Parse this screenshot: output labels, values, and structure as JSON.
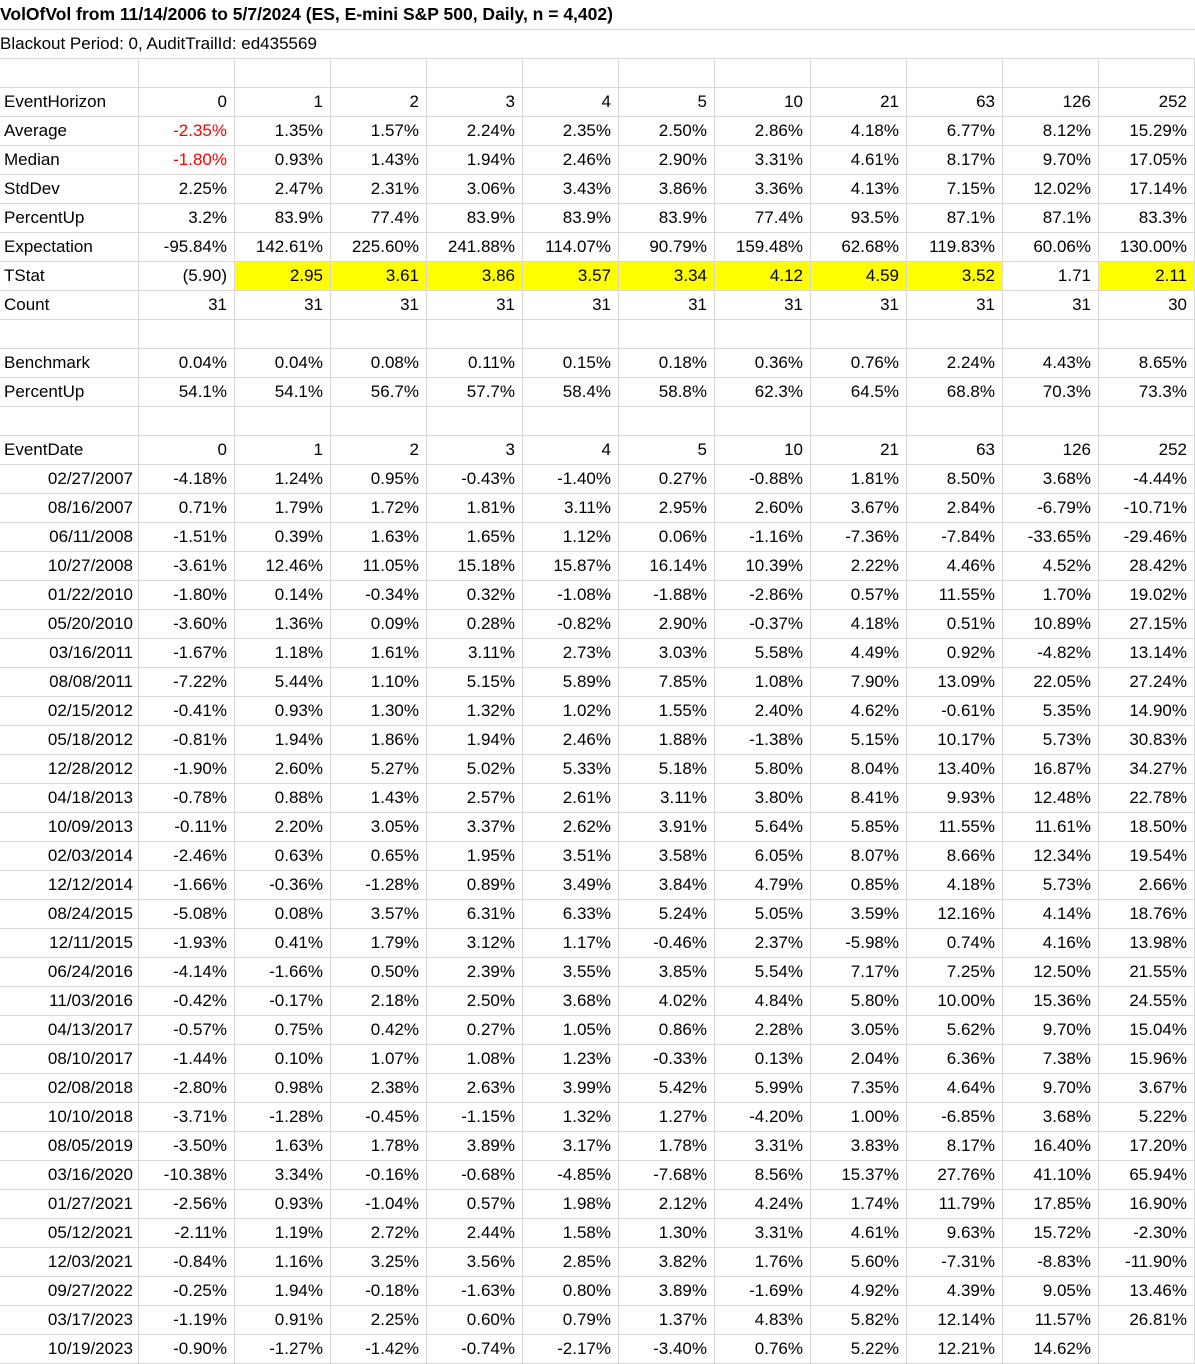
{
  "colors": {
    "highlight": "#ffff00",
    "negative": "#ff0000",
    "gridline": "#d8d8d8"
  },
  "rows": [
    {
      "type": "title",
      "text": "VolOfVol from 11/14/2006 to 5/7/2024 (ES, E-mini S&P 500, Daily, n = 4,402)"
    },
    {
      "type": "subtitle",
      "text": "Blackout Period: 0, AuditTrailId: ed435569"
    },
    {
      "type": "blank"
    },
    {
      "type": "header",
      "label": "EventHorizon",
      "values": [
        "0",
        "1",
        "2",
        "3",
        "4",
        "5",
        "10",
        "21",
        "63",
        "126",
        "252"
      ]
    },
    {
      "type": "data",
      "label": "Average",
      "red": [
        0
      ],
      "values": [
        "-2.35%",
        "1.35%",
        "1.57%",
        "2.24%",
        "2.35%",
        "2.50%",
        "2.86%",
        "4.18%",
        "6.77%",
        "8.12%",
        "15.29%"
      ]
    },
    {
      "type": "data",
      "label": "Median",
      "red": [
        0
      ],
      "values": [
        "-1.80%",
        "0.93%",
        "1.43%",
        "1.94%",
        "2.46%",
        "2.90%",
        "3.31%",
        "4.61%",
        "8.17%",
        "9.70%",
        "17.05%"
      ]
    },
    {
      "type": "data",
      "label": "StdDev",
      "values": [
        "2.25%",
        "2.47%",
        "2.31%",
        "3.06%",
        "3.43%",
        "3.86%",
        "3.36%",
        "4.13%",
        "7.15%",
        "12.02%",
        "17.14%"
      ]
    },
    {
      "type": "data",
      "label": "PercentUp",
      "values": [
        "3.2%",
        "83.9%",
        "77.4%",
        "83.9%",
        "83.9%",
        "83.9%",
        "77.4%",
        "93.5%",
        "87.1%",
        "87.1%",
        "83.3%"
      ]
    },
    {
      "type": "data",
      "label": "Expectation",
      "values": [
        "-95.84%",
        "142.61%",
        "225.60%",
        "241.88%",
        "114.07%",
        "90.79%",
        "159.48%",
        "62.68%",
        "119.83%",
        "60.06%",
        "130.00%"
      ]
    },
    {
      "type": "data",
      "label": "TStat",
      "yellow": [
        1,
        2,
        3,
        4,
        5,
        6,
        7,
        8,
        10
      ],
      "values": [
        "(5.90)",
        "2.95",
        "3.61",
        "3.86",
        "3.57",
        "3.34",
        "4.12",
        "4.59",
        "3.52",
        "1.71",
        "2.11"
      ]
    },
    {
      "type": "data",
      "label": "Count",
      "values": [
        "31",
        "31",
        "31",
        "31",
        "31",
        "31",
        "31",
        "31",
        "31",
        "31",
        "30"
      ]
    },
    {
      "type": "blank"
    },
    {
      "type": "data",
      "label": "Benchmark",
      "values": [
        "0.04%",
        "0.04%",
        "0.08%",
        "0.11%",
        "0.15%",
        "0.18%",
        "0.36%",
        "0.76%",
        "2.24%",
        "4.43%",
        "8.65%"
      ]
    },
    {
      "type": "data",
      "label": "PercentUp",
      "values": [
        "54.1%",
        "54.1%",
        "56.7%",
        "57.7%",
        "58.4%",
        "58.8%",
        "62.3%",
        "64.5%",
        "68.8%",
        "70.3%",
        "73.3%"
      ]
    },
    {
      "type": "blank"
    },
    {
      "type": "header",
      "label": "EventDate",
      "values": [
        "0",
        "1",
        "2",
        "3",
        "4",
        "5",
        "10",
        "21",
        "63",
        "126",
        "252"
      ]
    },
    {
      "type": "data",
      "label": "02/27/2007",
      "values": [
        "-4.18%",
        "1.24%",
        "0.95%",
        "-0.43%",
        "-1.40%",
        "0.27%",
        "-0.88%",
        "1.81%",
        "8.50%",
        "3.68%",
        "-4.44%"
      ]
    },
    {
      "type": "data",
      "label": "08/16/2007",
      "values": [
        "0.71%",
        "1.79%",
        "1.72%",
        "1.81%",
        "3.11%",
        "2.95%",
        "2.60%",
        "3.67%",
        "2.84%",
        "-6.79%",
        "-10.71%"
      ]
    },
    {
      "type": "data",
      "label": "06/11/2008",
      "values": [
        "-1.51%",
        "0.39%",
        "1.63%",
        "1.65%",
        "1.12%",
        "0.06%",
        "-1.16%",
        "-7.36%",
        "-7.84%",
        "-33.65%",
        "-29.46%"
      ]
    },
    {
      "type": "data",
      "label": "10/27/2008",
      "values": [
        "-3.61%",
        "12.46%",
        "11.05%",
        "15.18%",
        "15.87%",
        "16.14%",
        "10.39%",
        "2.22%",
        "4.46%",
        "4.52%",
        "28.42%"
      ]
    },
    {
      "type": "data",
      "label": "01/22/2010",
      "values": [
        "-1.80%",
        "0.14%",
        "-0.34%",
        "0.32%",
        "-1.08%",
        "-1.88%",
        "-2.86%",
        "0.57%",
        "11.55%",
        "1.70%",
        "19.02%"
      ]
    },
    {
      "type": "data",
      "label": "05/20/2010",
      "values": [
        "-3.60%",
        "1.36%",
        "0.09%",
        "0.28%",
        "-0.82%",
        "2.90%",
        "-0.37%",
        "4.18%",
        "0.51%",
        "10.89%",
        "27.15%"
      ]
    },
    {
      "type": "data",
      "label": "03/16/2011",
      "values": [
        "-1.67%",
        "1.18%",
        "1.61%",
        "3.11%",
        "2.73%",
        "3.03%",
        "5.58%",
        "4.49%",
        "0.92%",
        "-4.82%",
        "13.14%"
      ]
    },
    {
      "type": "data",
      "label": "08/08/2011",
      "values": [
        "-7.22%",
        "5.44%",
        "1.10%",
        "5.15%",
        "5.89%",
        "7.85%",
        "1.08%",
        "7.90%",
        "13.09%",
        "22.05%",
        "27.24%"
      ]
    },
    {
      "type": "data",
      "label": "02/15/2012",
      "values": [
        "-0.41%",
        "0.93%",
        "1.30%",
        "1.32%",
        "1.02%",
        "1.55%",
        "2.40%",
        "4.62%",
        "-0.61%",
        "5.35%",
        "14.90%"
      ]
    },
    {
      "type": "data",
      "label": "05/18/2012",
      "values": [
        "-0.81%",
        "1.94%",
        "1.86%",
        "1.94%",
        "2.46%",
        "1.88%",
        "-1.38%",
        "5.15%",
        "10.17%",
        "5.73%",
        "30.83%"
      ]
    },
    {
      "type": "data",
      "label": "12/28/2012",
      "values": [
        "-1.90%",
        "2.60%",
        "5.27%",
        "5.02%",
        "5.33%",
        "5.18%",
        "5.80%",
        "8.04%",
        "13.40%",
        "16.87%",
        "34.27%"
      ]
    },
    {
      "type": "data",
      "label": "04/18/2013",
      "values": [
        "-0.78%",
        "0.88%",
        "1.43%",
        "2.57%",
        "2.61%",
        "3.11%",
        "3.80%",
        "8.41%",
        "9.93%",
        "12.48%",
        "22.78%"
      ]
    },
    {
      "type": "data",
      "label": "10/09/2013",
      "values": [
        "-0.11%",
        "2.20%",
        "3.05%",
        "3.37%",
        "2.62%",
        "3.91%",
        "5.64%",
        "5.85%",
        "11.55%",
        "11.61%",
        "18.50%"
      ]
    },
    {
      "type": "data",
      "label": "02/03/2014",
      "values": [
        "-2.46%",
        "0.63%",
        "0.65%",
        "1.95%",
        "3.51%",
        "3.58%",
        "6.05%",
        "8.07%",
        "8.66%",
        "12.34%",
        "19.54%"
      ]
    },
    {
      "type": "data",
      "label": "12/12/2014",
      "values": [
        "-1.66%",
        "-0.36%",
        "-1.28%",
        "0.89%",
        "3.49%",
        "3.84%",
        "4.79%",
        "0.85%",
        "4.18%",
        "5.73%",
        "2.66%"
      ]
    },
    {
      "type": "data",
      "label": "08/24/2015",
      "values": [
        "-5.08%",
        "0.08%",
        "3.57%",
        "6.31%",
        "6.33%",
        "5.24%",
        "5.05%",
        "3.59%",
        "12.16%",
        "4.14%",
        "18.76%"
      ]
    },
    {
      "type": "data",
      "label": "12/11/2015",
      "values": [
        "-1.93%",
        "0.41%",
        "1.79%",
        "3.12%",
        "1.17%",
        "-0.46%",
        "2.37%",
        "-5.98%",
        "0.74%",
        "4.16%",
        "13.98%"
      ]
    },
    {
      "type": "data",
      "label": "06/24/2016",
      "values": [
        "-4.14%",
        "-1.66%",
        "0.50%",
        "2.39%",
        "3.55%",
        "3.85%",
        "5.54%",
        "7.17%",
        "7.25%",
        "12.50%",
        "21.55%"
      ]
    },
    {
      "type": "data",
      "label": "11/03/2016",
      "values": [
        "-0.42%",
        "-0.17%",
        "2.18%",
        "2.50%",
        "3.68%",
        "4.02%",
        "4.84%",
        "5.80%",
        "10.00%",
        "15.36%",
        "24.55%"
      ]
    },
    {
      "type": "data",
      "label": "04/13/2017",
      "values": [
        "-0.57%",
        "0.75%",
        "0.42%",
        "0.27%",
        "1.05%",
        "0.86%",
        "2.28%",
        "3.05%",
        "5.62%",
        "9.70%",
        "15.04%"
      ]
    },
    {
      "type": "data",
      "label": "08/10/2017",
      "values": [
        "-1.44%",
        "0.10%",
        "1.07%",
        "1.08%",
        "1.23%",
        "-0.33%",
        "0.13%",
        "2.04%",
        "6.36%",
        "7.38%",
        "15.96%"
      ]
    },
    {
      "type": "data",
      "label": "02/08/2018",
      "values": [
        "-2.80%",
        "0.98%",
        "2.38%",
        "2.63%",
        "3.99%",
        "5.42%",
        "5.99%",
        "7.35%",
        "4.64%",
        "9.70%",
        "3.67%"
      ]
    },
    {
      "type": "data",
      "label": "10/10/2018",
      "values": [
        "-3.71%",
        "-1.28%",
        "-0.45%",
        "-1.15%",
        "1.32%",
        "1.27%",
        "-4.20%",
        "1.00%",
        "-6.85%",
        "3.68%",
        "5.22%"
      ]
    },
    {
      "type": "data",
      "label": "08/05/2019",
      "values": [
        "-3.50%",
        "1.63%",
        "1.78%",
        "3.89%",
        "3.17%",
        "1.78%",
        "3.31%",
        "3.83%",
        "8.17%",
        "16.40%",
        "17.20%"
      ]
    },
    {
      "type": "data",
      "label": "03/16/2020",
      "values": [
        "-10.38%",
        "3.34%",
        "-0.16%",
        "-0.68%",
        "-4.85%",
        "-7.68%",
        "8.56%",
        "15.37%",
        "27.76%",
        "41.10%",
        "65.94%"
      ]
    },
    {
      "type": "data",
      "label": "01/27/2021",
      "values": [
        "-2.56%",
        "0.93%",
        "-1.04%",
        "0.57%",
        "1.98%",
        "2.12%",
        "4.24%",
        "1.74%",
        "11.79%",
        "17.85%",
        "16.90%"
      ]
    },
    {
      "type": "data",
      "label": "05/12/2021",
      "values": [
        "-2.11%",
        "1.19%",
        "2.72%",
        "2.44%",
        "1.58%",
        "1.30%",
        "3.31%",
        "4.61%",
        "9.63%",
        "15.72%",
        "-2.30%"
      ]
    },
    {
      "type": "data",
      "label": "12/03/2021",
      "values": [
        "-0.84%",
        "1.16%",
        "3.25%",
        "3.56%",
        "2.85%",
        "3.82%",
        "1.76%",
        "5.60%",
        "-7.31%",
        "-8.83%",
        "-11.90%"
      ]
    },
    {
      "type": "data",
      "label": "09/27/2022",
      "values": [
        "-0.25%",
        "1.94%",
        "-0.18%",
        "-1.63%",
        "0.80%",
        "3.89%",
        "-1.69%",
        "4.92%",
        "4.39%",
        "9.05%",
        "13.46%"
      ]
    },
    {
      "type": "data",
      "label": "03/17/2023",
      "values": [
        "-1.19%",
        "0.91%",
        "2.25%",
        "0.60%",
        "0.79%",
        "1.37%",
        "4.83%",
        "5.82%",
        "12.14%",
        "11.57%",
        "26.81%"
      ]
    },
    {
      "type": "data",
      "label": "10/19/2023",
      "values": [
        "-0.90%",
        "-1.27%",
        "-1.42%",
        "-0.74%",
        "-2.17%",
        "-3.40%",
        "0.76%",
        "5.22%",
        "12.21%",
        "14.62%",
        ""
      ]
    }
  ]
}
